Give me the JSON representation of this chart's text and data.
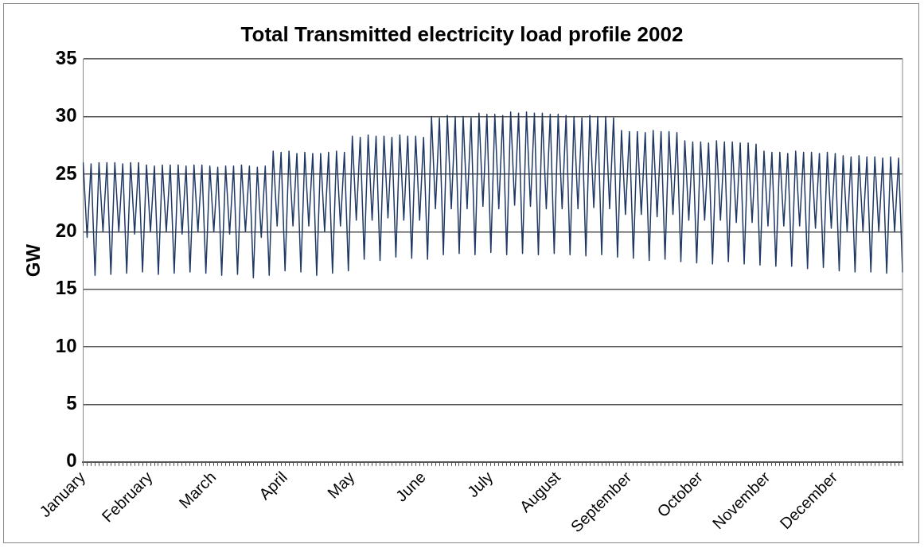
{
  "chart_data": {
    "type": "line",
    "title": "Total Transmitted electricity load profile 2002",
    "ylabel": "GW",
    "categories": [
      "January",
      null,
      null,
      null,
      null,
      null,
      null,
      null,
      null,
      null,
      null,
      null,
      null,
      null,
      null,
      null,
      null,
      "February",
      null,
      null,
      null,
      null,
      null,
      null,
      null,
      null,
      null,
      null,
      null,
      null,
      null,
      null,
      null,
      "March",
      null,
      null,
      null,
      null,
      null,
      null,
      null,
      null,
      null,
      null,
      null,
      null,
      null,
      null,
      null,
      null,
      null,
      "April",
      null,
      null,
      null,
      null,
      null,
      null,
      null,
      null,
      null,
      null,
      null,
      null,
      null,
      null,
      null,
      null,
      "May",
      null,
      null,
      null,
      null,
      null,
      null,
      null,
      null,
      null,
      null,
      null,
      null,
      null,
      null,
      null,
      null,
      null,
      "June",
      null,
      null,
      null,
      null,
      null,
      null,
      null,
      null,
      null,
      null,
      null,
      null,
      null,
      null,
      null,
      null,
      "July",
      null,
      null,
      null,
      null,
      null,
      null,
      null,
      null,
      null,
      null,
      null,
      null,
      null,
      null,
      null,
      null,
      "August",
      null,
      null,
      null,
      null,
      null,
      null,
      null,
      null,
      null,
      null,
      null,
      null,
      null,
      null,
      null,
      null,
      null,
      "September",
      null,
      null,
      null,
      null,
      null,
      null,
      null,
      null,
      null,
      null,
      null,
      null,
      null,
      null,
      null,
      null,
      null,
      "October",
      null,
      null,
      null,
      null,
      null,
      null,
      null,
      null,
      null,
      null,
      null,
      null,
      null,
      null,
      null,
      null,
      "November",
      null,
      null,
      null,
      null,
      null,
      null,
      null,
      null,
      null,
      null,
      null,
      null,
      null,
      null,
      null,
      null,
      "December",
      null,
      null,
      null,
      null,
      null,
      null,
      null,
      null,
      null,
      null,
      null,
      null,
      null,
      null,
      null,
      null,
      null
    ],
    "ylim": [
      0,
      35
    ],
    "yticks": [
      0,
      5,
      10,
      15,
      20,
      25,
      30,
      35
    ],
    "grid": "y",
    "legend": false,
    "marker": "none",
    "line_style": "solid",
    "series": [
      {
        "color": "#1f3864",
        "values": [
          26,
          19.5,
          25.9,
          16.2,
          26,
          20,
          26,
          16.3,
          26,
          20,
          25.9,
          16.4,
          26,
          19.8,
          26,
          16.5,
          25.8,
          20,
          25.7,
          16.3,
          25.8,
          20,
          25.8,
          16.4,
          25.8,
          19.8,
          25.7,
          16.5,
          25.8,
          20,
          25.8,
          16.4,
          25.7,
          20,
          25.6,
          16.2,
          25.7,
          19.8,
          25.7,
          16.3,
          25.8,
          20,
          25.7,
          16,
          25.6,
          19.5,
          25.7,
          16.2,
          27,
          20.5,
          26.9,
          16.6,
          27,
          20.5,
          26.8,
          16.5,
          26.9,
          20.5,
          26.8,
          16.2,
          26.8,
          20,
          26.9,
          16.4,
          27,
          20.5,
          26.9,
          16.6,
          28.3,
          21,
          28.2,
          17.6,
          28.4,
          21,
          28.3,
          17.5,
          28.3,
          21.2,
          28.2,
          17.8,
          28.4,
          21,
          28.3,
          17.7,
          28.3,
          21,
          28.2,
          17.6,
          30,
          22,
          29.9,
          18,
          30.1,
          22,
          30,
          18.1,
          30,
          22,
          29.9,
          18,
          30.3,
          22.2,
          30.2,
          18.2,
          30.2,
          22,
          30.1,
          18,
          30.4,
          22.3,
          30.3,
          18.1,
          30.4,
          22.2,
          30.3,
          18,
          30.3,
          22,
          30.2,
          18.1,
          30.2,
          22,
          30.1,
          18,
          30,
          22,
          29.9,
          17.9,
          30.1,
          22.1,
          30,
          18,
          30,
          22,
          29.9,
          17.8,
          28.8,
          21.5,
          28.7,
          17.7,
          28.7,
          21.5,
          28.6,
          17.5,
          28.8,
          21.3,
          28.7,
          17.6,
          28.7,
          21.5,
          28.6,
          17.4,
          27.9,
          21,
          27.8,
          17.3,
          27.8,
          21,
          27.7,
          17.2,
          27.9,
          21,
          27.8,
          17.4,
          27.8,
          20.8,
          27.7,
          17.2,
          27.7,
          20.8,
          27.6,
          17.1,
          27,
          20.5,
          26.9,
          17,
          26.9,
          20.5,
          26.8,
          17,
          27,
          20.5,
          26.9,
          16.8,
          26.9,
          20.3,
          26.8,
          16.9,
          26.9,
          20.3,
          26.8,
          16.6,
          26.6,
          20,
          26.5,
          16.5,
          26.6,
          20,
          26.5,
          16.5,
          26.5,
          20,
          26.4,
          16.4,
          26.5,
          20,
          26.4,
          16.5
        ]
      }
    ]
  }
}
